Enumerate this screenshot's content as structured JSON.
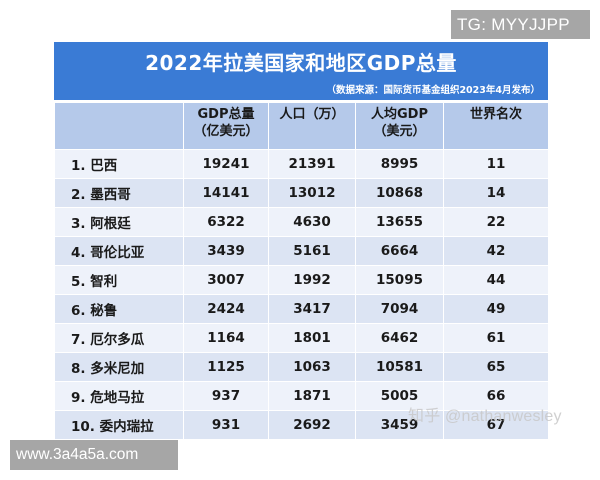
{
  "watermarks": {
    "top_right": "TG: MYYJJPP",
    "bottom_left": "www.3a4a5a.com",
    "zhihu": "知乎 @nathanwesley"
  },
  "title": "2022年拉美国家和地区GDP总量",
  "source": "（数据来源：国际货币基金组织2023年4月发布）",
  "colors": {
    "title_bar": "#3a7bd5",
    "header_bg": "#b5c9ea",
    "row_odd": "#eef2fa",
    "row_even": "#dce4f3"
  },
  "table": {
    "headers": [
      {
        "line1": "",
        "line2": ""
      },
      {
        "line1": "GDP总量",
        "line2": "（亿美元）"
      },
      {
        "line1": "人口（万）",
        "line2": ""
      },
      {
        "line1": "人均GDP",
        "line2": "（美元）"
      },
      {
        "line1": "世界名次",
        "line2": ""
      }
    ],
    "rows": [
      {
        "name": "1. 巴西",
        "gdp": "19241",
        "population": "21391",
        "gdp_per_capita": "8995",
        "world_rank": "11"
      },
      {
        "name": "2. 墨西哥",
        "gdp": "14141",
        "population": "13012",
        "gdp_per_capita": "10868",
        "world_rank": "14"
      },
      {
        "name": "3. 阿根廷",
        "gdp": "6322",
        "population": "4630",
        "gdp_per_capita": "13655",
        "world_rank": "22"
      },
      {
        "name": "4. 哥伦比亚",
        "gdp": "3439",
        "population": "5161",
        "gdp_per_capita": "6664",
        "world_rank": "42"
      },
      {
        "name": "5. 智利",
        "gdp": "3007",
        "population": "1992",
        "gdp_per_capita": "15095",
        "world_rank": "44"
      },
      {
        "name": "6. 秘鲁",
        "gdp": "2424",
        "population": "3417",
        "gdp_per_capita": "7094",
        "world_rank": "49"
      },
      {
        "name": "7. 厄尔多瓜",
        "gdp": "1164",
        "population": "1801",
        "gdp_per_capita": "6462",
        "world_rank": "61"
      },
      {
        "name": "8. 多米尼加",
        "gdp": "1125",
        "population": "1063",
        "gdp_per_capita": "10581",
        "world_rank": "65"
      },
      {
        "name": "9. 危地马拉",
        "gdp": "937",
        "population": "1871",
        "gdp_per_capita": "5005",
        "world_rank": "66"
      },
      {
        "name": "10. 委内瑞拉",
        "gdp": "931",
        "population": "2692",
        "gdp_per_capita": "3459",
        "world_rank": "67"
      }
    ]
  }
}
